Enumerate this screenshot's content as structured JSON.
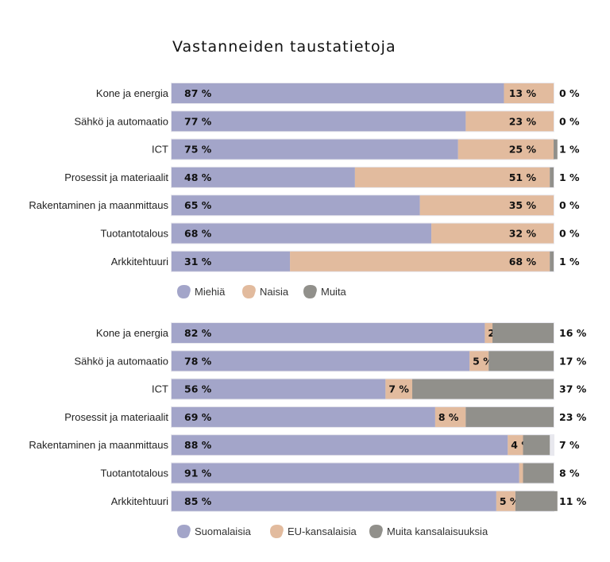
{
  "title": "Vastanneiden taustatietoja",
  "chart_data": [
    {
      "type": "bar",
      "orientation": "horizontal",
      "stacked": true,
      "categories": [
        "Kone ja energia",
        "Sähkö ja automaatio",
        "ICT",
        "Prosessit ja materiaalit",
        "Rakentaminen ja maanmittaus",
        "Tuotantotalous",
        "Arkkitehtuuri"
      ],
      "series": [
        {
          "name": "Miehiä",
          "color": "#a3a5c9",
          "values": [
            87,
            77,
            75,
            48,
            65,
            68,
            31
          ]
        },
        {
          "name": "Naisia",
          "color": "#e2bb9e",
          "values": [
            13,
            23,
            25,
            51,
            35,
            32,
            68
          ]
        },
        {
          "name": "Muita",
          "color": "#91908b",
          "values": [
            0,
            0,
            1,
            1,
            0,
            0,
            1
          ]
        }
      ],
      "unit": "%",
      "xlim": [
        0,
        100
      ],
      "legend": "bottom-left"
    },
    {
      "type": "bar",
      "orientation": "horizontal",
      "stacked": true,
      "categories": [
        "Kone ja energia",
        "Sähkö ja automaatio",
        "ICT",
        "Prosessit ja materiaalit",
        "Rakentaminen ja maanmittaus",
        "Tuotantotalous",
        "Arkkitehtuuri"
      ],
      "series": [
        {
          "name": "Suomalaisia",
          "color": "#a3a5c9",
          "values": [
            82,
            78,
            56,
            69,
            88,
            91,
            85
          ]
        },
        {
          "name": "EU-kansalaisia",
          "color": "#e2bb9e",
          "values": [
            2,
            5,
            7,
            8,
            4,
            1,
            5
          ]
        },
        {
          "name": "Muita kansalaisuuksia",
          "color": "#91908b",
          "values": [
            16,
            17,
            37,
            23,
            7,
            8,
            11
          ]
        }
      ],
      "unit": "%",
      "xlim": [
        0,
        100
      ],
      "legend": "bottom-left"
    }
  ]
}
